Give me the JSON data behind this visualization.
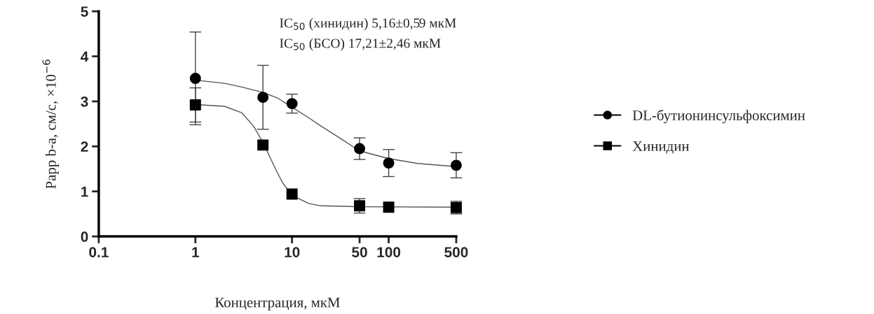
{
  "chart_data": {
    "type": "scatter",
    "xlabel": "Концентрация, мкМ",
    "ylabel": "Papp b-a, см/с, ×10$^{−6}$",
    "log": "x",
    "xlim": [
      0.1,
      500
    ],
    "xticks": [
      0.1,
      1,
      10,
      50,
      100,
      500
    ],
    "ylim": [
      0,
      5
    ],
    "yticks": [
      0,
      1,
      2,
      3,
      4,
      5
    ],
    "grid": false,
    "legend": "right",
    "annotations": [
      "IC$_{50}$ (хинидин) 5,16±0,59 мкМ",
      "IC$_{50}$ (БСО) 17,21±2,46 мкМ"
    ],
    "series": [
      {
        "name": "DL-бутионинсульфоксимин",
        "color": "#000000",
        "marker": "circle",
        "x": [
          1,
          5,
          10,
          50,
          100,
          500
        ],
        "values": [
          3.51,
          3.09,
          2.95,
          1.95,
          1.63,
          1.58
        ],
        "errors": [
          1.03,
          0.71,
          0.21,
          0.24,
          0.3,
          0.28
        ]
      },
      {
        "name": "Хинидин",
        "color": "#000000",
        "marker": "square",
        "x": [
          1,
          5,
          10,
          50,
          100,
          500
        ],
        "values": [
          2.92,
          2.03,
          0.94,
          0.68,
          0.65,
          0.64
        ],
        "errors": [
          0.38,
          null,
          null,
          0.16,
          null,
          0.14
        ]
      },
      {
        "type": "line",
        "color": "#555555",
        "marker": "none",
        "x": [
          1,
          2,
          3,
          5,
          7,
          10,
          15,
          20,
          30,
          50,
          100,
          200,
          500
        ],
        "values": [
          3.47,
          3.4,
          3.32,
          3.2,
          3.08,
          2.87,
          2.63,
          2.45,
          2.21,
          1.9,
          1.73,
          1.62,
          1.55
        ]
      },
      {
        "type": "line",
        "color": "#555555",
        "marker": "none",
        "x": [
          1,
          2,
          3,
          4,
          5,
          6,
          7,
          8,
          10,
          15,
          20,
          50,
          500
        ],
        "values": [
          2.93,
          2.89,
          2.75,
          2.45,
          2.09,
          1.73,
          1.43,
          1.19,
          0.91,
          0.73,
          0.68,
          0.66,
          0.65
        ]
      }
    ]
  }
}
